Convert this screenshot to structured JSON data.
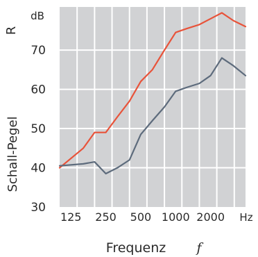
{
  "chart_data": {
    "type": "line",
    "title": "",
    "unit_label": "dB",
    "ylabel_letter": "R",
    "ylabel": "Schall-Pegel",
    "xlabel": "Frequenz",
    "xlabel_symbol": "f",
    "x_unit": "Hz",
    "x_scale": "log",
    "xlim": [
      100,
      4000
    ],
    "ylim": [
      30,
      81
    ],
    "grid": true,
    "legend": "none",
    "x_ticks": [
      {
        "value": 125,
        "label": "125"
      },
      {
        "value": 250,
        "label": "250"
      },
      {
        "value": 500,
        "label": "500"
      },
      {
        "value": 1000,
        "label": "1000"
      },
      {
        "value": 2000,
        "label": "2000"
      }
    ],
    "y_ticks": [
      30,
      40,
      50,
      60,
      70
    ],
    "series": [
      {
        "color": "#e8533a",
        "x": [
          100,
          160,
          200,
          250,
          315,
          400,
          500,
          630,
          800,
          1000,
          1250,
          1600,
          2000,
          2500,
          3150,
          4000
        ],
        "y": [
          40,
          45,
          49,
          49,
          53,
          57,
          62,
          65,
          70,
          74.5,
          75.5,
          76.5,
          78,
          79.5,
          77.5,
          76
        ]
      },
      {
        "color": "#5d6b7c",
        "x": [
          100,
          160,
          200,
          250,
          315,
          400,
          500,
          630,
          800,
          1000,
          1250,
          1600,
          2000,
          2500,
          3150,
          4000
        ],
        "y": [
          40.5,
          41,
          41.5,
          38.5,
          40,
          42,
          48.5,
          52,
          55.5,
          59.5,
          60.5,
          61.5,
          63.5,
          68,
          66,
          63.5
        ]
      }
    ]
  }
}
